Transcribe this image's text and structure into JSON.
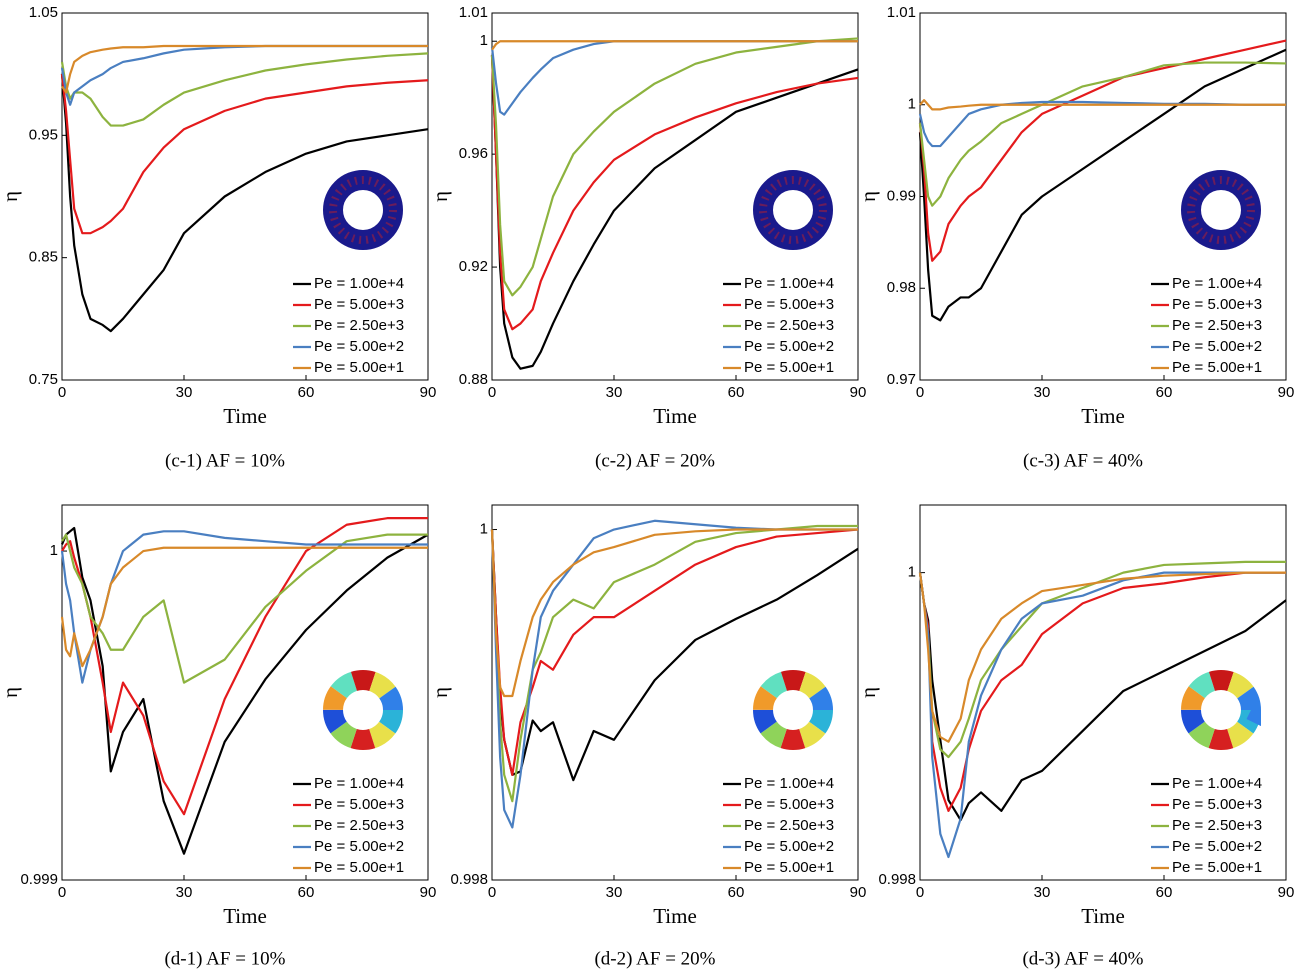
{
  "chart_data": [
    {
      "type": "line",
      "caption": "(c-1) AF = 10%",
      "x_label": "Time",
      "y_label": "η",
      "legend": "lower right",
      "inset": "blue ring",
      "x": [
        0,
        1,
        2,
        3,
        5,
        7,
        10,
        12,
        15,
        20,
        25,
        30,
        40,
        50,
        60,
        70,
        80,
        90
      ],
      "xlim": [
        0,
        90
      ],
      "xticks": [
        0,
        30,
        60,
        90
      ],
      "ylim": [
        0.75,
        1.05
      ],
      "yticks": [
        0.75,
        0.85,
        0.95,
        1.05
      ],
      "series": [
        {
          "name": "Pe = 1.00e+4",
          "color": "#000000",
          "values": [
            1.0,
            0.96,
            0.9,
            0.86,
            0.82,
            0.8,
            0.795,
            0.79,
            0.8,
            0.82,
            0.84,
            0.87,
            0.9,
            0.92,
            0.935,
            0.945,
            0.95,
            0.955
          ]
        },
        {
          "name": "Pe = 5.00e+3",
          "color": "#e41a1c",
          "values": [
            1.0,
            0.97,
            0.93,
            0.89,
            0.87,
            0.87,
            0.875,
            0.88,
            0.89,
            0.92,
            0.94,
            0.955,
            0.97,
            0.98,
            0.985,
            0.99,
            0.993,
            0.995
          ]
        },
        {
          "name": "Pe = 2.50e+3",
          "color": "#8db33f",
          "values": [
            1.01,
            0.99,
            0.98,
            0.985,
            0.985,
            0.98,
            0.965,
            0.958,
            0.958,
            0.963,
            0.975,
            0.985,
            0.995,
            1.003,
            1.008,
            1.012,
            1.015,
            1.017
          ]
        },
        {
          "name": "Pe = 5.00e+2",
          "color": "#4a7fc1",
          "values": [
            1.005,
            0.985,
            0.975,
            0.985,
            0.99,
            0.995,
            1.0,
            1.005,
            1.01,
            1.013,
            1.017,
            1.02,
            1.022,
            1.023,
            1.023,
            1.023,
            1.023,
            1.023
          ]
        },
        {
          "name": "Pe = 5.00e+1",
          "color": "#d8892a",
          "values": [
            0.99,
            0.985,
            1.0,
            1.01,
            1.015,
            1.018,
            1.02,
            1.021,
            1.022,
            1.022,
            1.023,
            1.023,
            1.023,
            1.023,
            1.023,
            1.023,
            1.023,
            1.023
          ]
        }
      ]
    },
    {
      "type": "line",
      "caption": "(c-2) AF = 20%",
      "x_label": "Time",
      "y_label": "η",
      "legend": "lower right",
      "inset": "blue ring",
      "x": [
        0,
        1,
        2,
        3,
        5,
        7,
        10,
        12,
        15,
        20,
        25,
        30,
        40,
        50,
        60,
        70,
        80,
        90
      ],
      "xlim": [
        0,
        90
      ],
      "xticks": [
        0,
        30,
        60,
        90
      ],
      "ylim": [
        0.88,
        1.01
      ],
      "yticks": [
        0.88,
        0.92,
        0.96,
        1,
        1.01
      ],
      "series": [
        {
          "name": "Pe = 1.00e+4",
          "color": "#000000",
          "values": [
            0.995,
            0.96,
            0.92,
            0.9,
            0.888,
            0.884,
            0.885,
            0.89,
            0.9,
            0.915,
            0.928,
            0.94,
            0.955,
            0.965,
            0.975,
            0.98,
            0.985,
            0.99
          ]
        },
        {
          "name": "Pe = 5.00e+3",
          "color": "#e41a1c",
          "values": [
            0.995,
            0.96,
            0.925,
            0.905,
            0.898,
            0.9,
            0.905,
            0.915,
            0.925,
            0.94,
            0.95,
            0.958,
            0.967,
            0.973,
            0.978,
            0.982,
            0.985,
            0.987
          ]
        },
        {
          "name": "Pe = 2.50e+3",
          "color": "#8db33f",
          "values": [
            0.995,
            0.97,
            0.935,
            0.915,
            0.91,
            0.913,
            0.92,
            0.93,
            0.945,
            0.96,
            0.968,
            0.975,
            0.985,
            0.992,
            0.996,
            0.998,
            1.0,
            1.001
          ]
        },
        {
          "name": "Pe = 5.00e+2",
          "color": "#4a7fc1",
          "values": [
            0.998,
            0.985,
            0.975,
            0.974,
            0.978,
            0.982,
            0.987,
            0.99,
            0.994,
            0.997,
            0.999,
            1.0,
            1.0,
            1.0,
            1.0,
            1.0,
            1.0,
            1.0
          ]
        },
        {
          "name": "Pe = 5.00e+1",
          "color": "#d8892a",
          "values": [
            0.997,
            0.999,
            1.0,
            1.0,
            1.0,
            1.0,
            1.0,
            1.0,
            1.0,
            1.0,
            1.0,
            1.0,
            1.0,
            1.0,
            1.0,
            1.0,
            1.0,
            1.0
          ]
        }
      ]
    },
    {
      "type": "line",
      "caption": "(c-3) AF = 40%",
      "x_label": "Time",
      "y_label": "η",
      "legend": "lower right",
      "inset": "blue ring",
      "x": [
        0,
        1,
        2,
        3,
        5,
        7,
        10,
        12,
        15,
        20,
        25,
        30,
        40,
        50,
        60,
        70,
        80,
        90
      ],
      "xlim": [
        0,
        90
      ],
      "xticks": [
        0,
        30,
        60,
        90
      ],
      "ylim": [
        0.97,
        1.01
      ],
      "yticks": [
        0.97,
        0.98,
        0.99,
        1,
        1.01
      ],
      "series": [
        {
          "name": "Pe = 1.00e+4",
          "color": "#000000",
          "values": [
            0.997,
            0.99,
            0.982,
            0.977,
            0.9765,
            0.978,
            0.979,
            0.979,
            0.98,
            0.984,
            0.988,
            0.99,
            0.993,
            0.996,
            0.999,
            1.002,
            1.004,
            1.006
          ]
        },
        {
          "name": "Pe = 5.00e+3",
          "color": "#e41a1c",
          "values": [
            0.998,
            0.993,
            0.986,
            0.983,
            0.984,
            0.987,
            0.989,
            0.99,
            0.991,
            0.994,
            0.997,
            0.999,
            1.001,
            1.003,
            1.004,
            1.005,
            1.006,
            1.007
          ]
        },
        {
          "name": "Pe = 2.50e+3",
          "color": "#8db33f",
          "values": [
            0.998,
            0.994,
            0.99,
            0.989,
            0.99,
            0.992,
            0.994,
            0.995,
            0.996,
            0.998,
            0.999,
            1.0,
            1.002,
            1.003,
            1.0043,
            1.0046,
            1.0046,
            1.0045
          ]
        },
        {
          "name": "Pe = 5.00e+2",
          "color": "#4a7fc1",
          "values": [
            0.999,
            0.997,
            0.996,
            0.9955,
            0.9955,
            0.9965,
            0.998,
            0.999,
            0.9995,
            1.0,
            1.0002,
            1.0003,
            1.0003,
            1.0002,
            1.0001,
            1.0001,
            1.0,
            1.0
          ]
        },
        {
          "name": "Pe = 5.00e+1",
          "color": "#d8892a",
          "values": [
            1.0,
            1.0005,
            1.0,
            0.9995,
            0.9995,
            0.9997,
            0.9998,
            0.9999,
            1.0,
            1.0,
            1.0,
            1.0,
            1.0,
            1.0,
            1.0,
            1.0,
            1.0,
            1.0
          ]
        }
      ]
    },
    {
      "type": "line",
      "caption": "(d-1) AF = 10%",
      "x_label": "Time",
      "y_label": "η",
      "legend": "lower right",
      "inset": "colored ring",
      "x": [
        0,
        1,
        2,
        3,
        5,
        7,
        10,
        12,
        15,
        20,
        25,
        30,
        40,
        50,
        60,
        70,
        80,
        90
      ],
      "xlim": [
        0,
        90
      ],
      "xticks": [
        0,
        30,
        60,
        90
      ],
      "ylim": [
        0.999,
        1.00014
      ],
      "yticks": [
        0.999,
        1
      ],
      "series": [
        {
          "name": "Pe = 1.00e+4",
          "color": "#000000",
          "values": [
            1.00002,
            1.00005,
            1.00006,
            1.00007,
            0.99992,
            0.99985,
            0.99965,
            0.99933,
            0.99945,
            0.99955,
            0.99924,
            0.99908,
            0.99942,
            0.99961,
            0.99976,
            0.99988,
            0.99998,
            1.00005
          ]
        },
        {
          "name": "Pe = 5.00e+3",
          "color": "#e41a1c",
          "values": [
            1.0,
            1.00002,
            1.00003,
            0.99998,
            0.9999,
            0.9998,
            0.9996,
            0.99945,
            0.9996,
            0.9995,
            0.9993,
            0.9992,
            0.99955,
            0.9998,
            1.0,
            1.00008,
            1.0001,
            1.0001
          ]
        },
        {
          "name": "Pe = 2.50e+3",
          "color": "#8db33f",
          "values": [
            1.00003,
            1.00005,
            1.0,
            0.99995,
            0.9999,
            0.9998,
            0.99975,
            0.9997,
            0.9997,
            0.9998,
            0.99985,
            0.9996,
            0.99967,
            0.99983,
            0.99994,
            1.00003,
            1.00005,
            1.00005
          ]
        },
        {
          "name": "Pe = 5.00e+2",
          "color": "#4a7fc1",
          "values": [
            1.0,
            0.9999,
            0.99985,
            0.99975,
            0.9996,
            0.9997,
            0.9998,
            0.9999,
            1.0,
            1.00005,
            1.00006,
            1.00006,
            1.00004,
            1.00003,
            1.00002,
            1.00002,
            1.00002,
            1.00002
          ]
        },
        {
          "name": "Pe = 5.00e+1",
          "color": "#d8892a",
          "values": [
            0.9998,
            0.9997,
            0.99968,
            0.99975,
            0.99965,
            0.9997,
            0.9998,
            0.9999,
            0.99995,
            1.0,
            1.00001,
            1.00001,
            1.00001,
            1.00001,
            1.00001,
            1.00001,
            1.00001,
            1.00001
          ]
        }
      ]
    },
    {
      "type": "line",
      "caption": "(d-2) AF = 20%",
      "x_label": "Time",
      "y_label": "η",
      "legend": "lower right",
      "inset": "colored ring",
      "x": [
        0,
        1,
        2,
        3,
        5,
        7,
        10,
        12,
        15,
        20,
        25,
        30,
        40,
        50,
        60,
        70,
        80,
        90
      ],
      "xlim": [
        0,
        90
      ],
      "xticks": [
        0,
        30,
        60,
        90
      ],
      "ylim": [
        0.998,
        1.00014
      ],
      "yticks": [
        0.998,
        1
      ],
      "series": [
        {
          "name": "Pe = 1.00e+4",
          "color": "#000000",
          "values": [
            1.0,
            0.9995,
            0.99903,
            0.9988,
            0.9986,
            0.99862,
            0.99891,
            0.99885,
            0.9989,
            0.99857,
            0.99885,
            0.9988,
            0.99914,
            0.99937,
            0.99949,
            0.9996,
            0.99974,
            0.99989
          ]
        },
        {
          "name": "Pe = 5.00e+3",
          "color": "#e41a1c",
          "values": [
            1.0,
            0.9995,
            0.9991,
            0.9988,
            0.9986,
            0.9989,
            0.9991,
            0.99925,
            0.9992,
            0.9994,
            0.9995,
            0.9995,
            0.99965,
            0.9998,
            0.9999,
            0.99996,
            0.99998,
            1.0
          ]
        },
        {
          "name": "Pe = 2.50e+3",
          "color": "#8db33f",
          "values": [
            1.0,
            0.9994,
            0.9989,
            0.9986,
            0.99845,
            0.9988,
            0.9992,
            0.9993,
            0.9995,
            0.9996,
            0.99955,
            0.9997,
            0.9998,
            0.99993,
            0.99998,
            1.0,
            1.00002,
            1.00002
          ]
        },
        {
          "name": "Pe = 5.00e+2",
          "color": "#4a7fc1",
          "values": [
            1.0,
            0.9993,
            0.9987,
            0.9984,
            0.9983,
            0.9986,
            0.9992,
            0.9995,
            0.99965,
            0.9998,
            0.99995,
            1.0,
            1.00005,
            1.00003,
            1.00001,
            1.0,
            1.0,
            1.0
          ]
        },
        {
          "name": "Pe = 5.00e+1",
          "color": "#d8892a",
          "values": [
            1.0,
            0.9994,
            0.9991,
            0.99905,
            0.99905,
            0.99925,
            0.9995,
            0.9996,
            0.9997,
            0.9998,
            0.99987,
            0.9999,
            0.99997,
            0.99999,
            1.0,
            1.0,
            1.0,
            1.0
          ]
        }
      ]
    },
    {
      "type": "line",
      "caption": "(d-3) AF = 40%",
      "x_label": "Time",
      "y_label": "η",
      "legend": "lower right",
      "inset": "colored ring",
      "x": [
        0,
        1,
        2,
        3,
        5,
        7,
        10,
        12,
        15,
        20,
        25,
        30,
        40,
        50,
        60,
        70,
        80,
        90
      ],
      "xlim": [
        0,
        90
      ],
      "xticks": [
        0,
        30,
        60,
        90
      ],
      "ylim": [
        0.998,
        1.00044
      ],
      "yticks": [
        0.998,
        1
      ],
      "series": [
        {
          "name": "Pe = 1.00e+4",
          "color": "#000000",
          "values": [
            1.0,
            0.9998,
            0.99969,
            0.9993,
            0.99891,
            0.99852,
            0.99839,
            0.9985,
            0.99857,
            0.99845,
            0.99865,
            0.99871,
            0.99897,
            0.99923,
            0.99936,
            0.99949,
            0.99962,
            0.99982
          ]
        },
        {
          "name": "Pe = 5.00e+3",
          "color": "#e41a1c",
          "values": [
            1.0,
            0.9998,
            0.99965,
            0.9989,
            0.9986,
            0.99845,
            0.9986,
            0.99885,
            0.9991,
            0.9993,
            0.9994,
            0.9996,
            0.9998,
            0.9999,
            0.99993,
            0.99997,
            1.0,
            1.0
          ]
        },
        {
          "name": "Pe = 2.50e+3",
          "color": "#8db33f",
          "values": [
            1.0,
            0.9998,
            0.9996,
            0.9991,
            0.99885,
            0.9988,
            0.9989,
            0.99905,
            0.9993,
            0.9995,
            0.99965,
            0.9998,
            0.9999,
            1.0,
            1.00005,
            1.00006,
            1.00007,
            1.00007
          ]
        },
        {
          "name": "Pe = 5.00e+2",
          "color": "#4a7fc1",
          "values": [
            1.0,
            0.9998,
            0.9996,
            0.9988,
            0.9983,
            0.99815,
            0.9984,
            0.9989,
            0.9992,
            0.9995,
            0.9997,
            0.9998,
            0.99985,
            0.99995,
            1.0,
            1.0,
            1.0,
            1.0
          ]
        },
        {
          "name": "Pe = 5.00e+1",
          "color": "#d8892a",
          "values": [
            1.0,
            0.9998,
            0.9995,
            0.9991,
            0.99893,
            0.9989,
            0.99905,
            0.9993,
            0.9995,
            0.9997,
            0.9998,
            0.99988,
            0.99992,
            0.99996,
            0.99998,
            0.99999,
            1.0,
            1.0
          ]
        }
      ]
    }
  ]
}
